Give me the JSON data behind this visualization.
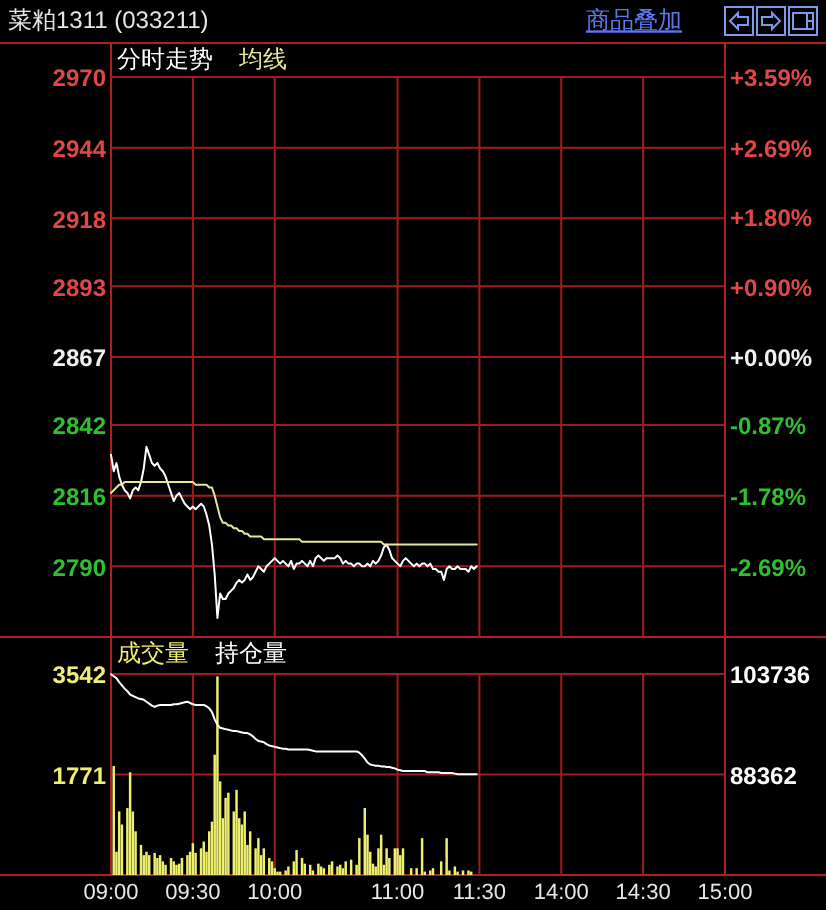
{
  "chart_data": [
    {
      "type": "line",
      "title": "菜粕1311 (033211)",
      "annotations": [
        "商品叠加"
      ],
      "categories": [
        null,
        null,
        null,
        null,
        null,
        null,
        null,
        null,
        null,
        null,
        null,
        null,
        null,
        null,
        null,
        null,
        null,
        null,
        null,
        null,
        null,
        null,
        null,
        null,
        null,
        null,
        null,
        null,
        null,
        null,
        null,
        null,
        null,
        null,
        null,
        null,
        null,
        null,
        null,
        null,
        null,
        null,
        null,
        null,
        null,
        null,
        null,
        null,
        null,
        null,
        null,
        null,
        null,
        null,
        null,
        null,
        null,
        null,
        null,
        null,
        null,
        null,
        null,
        null,
        null,
        null,
        null,
        null,
        null,
        null,
        null,
        null,
        null,
        null,
        null,
        null,
        null,
        null,
        null,
        null,
        null,
        null,
        null,
        null,
        null,
        null,
        null,
        null,
        null,
        null,
        null,
        null,
        null,
        null,
        null,
        null,
        null,
        null,
        null,
        null,
        null,
        null,
        null,
        null,
        null,
        null,
        null,
        null,
        null,
        null,
        null,
        null,
        null,
        null,
        null,
        null,
        null,
        null,
        null,
        null,
        null,
        null,
        null,
        null,
        null,
        null,
        null,
        null,
        null,
        null,
        null,
        null,
        null,
        null,
        null,
        null,
        null,
        null,
        null,
        null,
        null,
        null,
        null,
        null,
        null,
        null,
        null,
        null,
        null,
        null,
        null,
        null,
        null,
        null,
        null,
        null,
        null,
        null,
        null,
        null,
        null,
        null,
        null,
        null,
        null,
        null,
        null,
        null,
        null,
        null,
        null,
        null,
        null,
        null,
        null,
        null,
        null,
        null,
        null,
        null,
        null,
        null,
        null,
        null,
        null,
        null,
        null,
        null,
        null,
        null,
        null,
        null,
        null,
        null,
        null,
        null,
        null,
        null,
        null,
        null,
        null,
        null,
        null,
        null,
        null,
        null,
        null,
        null,
        null,
        null,
        null,
        null,
        null,
        null,
        null,
        null,
        null,
        null,
        null,
        null,
        null,
        null,
        null,
        null,
        null,
        null
      ],
      "ylim": [
        2764,
        2970
      ],
      "yticks": [
        2970,
        2944,
        2918,
        2893,
        2867,
        2842,
        2816,
        2790
      ],
      "y2lim": [
        -3.59,
        3.59
      ],
      "y2ticks": [
        {
          "value": 3.59,
          "label": "+3.59%"
        },
        {
          "value": 2.69,
          "label": "+2.69%"
        },
        {
          "value": 1.8,
          "label": "+1.80%"
        },
        {
          "value": 0.9,
          "label": "+0.90%"
        },
        {
          "value": 0,
          "label": "+0.00%"
        },
        {
          "value": -0.87,
          "label": "-0.87%"
        },
        {
          "value": -1.78,
          "label": "-1.78%"
        },
        {
          "value": -2.69,
          "label": "-2.69%"
        }
      ],
      "grid": true,
      "legend": "top left",
      "tick_labels": "y",
      "series": [
        {
          "name": "分时走势",
          "color": "#ffffff",
          "values": [
            2831,
            2825,
            2828,
            2823,
            2820,
            2818,
            2817,
            2815,
            2818,
            2819,
            2818,
            2821,
            2826,
            2834,
            2831,
            2828,
            2827,
            2828,
            2826,
            2825,
            2823,
            2820,
            2817,
            2814,
            2816,
            2817,
            2815,
            2813,
            2812,
            2811,
            2812,
            2811,
            2812,
            2813,
            2812,
            2809,
            2805,
            2798,
            2787,
            2771,
            2780,
            2778,
            2778,
            2780,
            2781,
            2782,
            2784,
            2785,
            2784,
            2785,
            2787,
            2785,
            2786,
            2788,
            2790,
            2789,
            2788,
            2790,
            2791,
            2792,
            2793,
            2792,
            2791,
            2792,
            2791,
            2790,
            2792,
            2789,
            2791,
            2791,
            2792,
            2791,
            2790,
            2792,
            2790,
            2793,
            2794,
            2793,
            2792,
            2793,
            2793,
            2793,
            2793,
            2794,
            2793,
            2791,
            2792,
            2791,
            2791,
            2790,
            2791,
            2791,
            2790,
            2790,
            2791,
            2790,
            2792,
            2791,
            2792,
            2794,
            2797,
            2798,
            2796,
            2793,
            2792,
            2791,
            2790,
            2792,
            2793,
            2792,
            2791,
            2790,
            2791,
            2790,
            2791,
            2791,
            2790,
            2791,
            2789,
            2789,
            2788,
            2788,
            2785,
            2789,
            2790,
            2789,
            2789,
            2790,
            2789,
            2789,
            2789,
            2788,
            2790,
            2789,
            2790,
            null,
            null,
            null,
            null,
            null,
            null,
            null,
            null,
            null,
            null,
            null,
            null,
            null,
            null,
            null,
            null,
            null,
            null,
            null,
            null,
            null,
            null,
            null,
            null,
            null,
            null,
            null,
            null,
            null,
            null,
            null,
            null,
            null,
            null,
            null,
            null,
            null,
            null,
            null,
            null,
            null,
            null,
            null,
            null,
            null,
            null,
            null,
            null,
            null,
            null,
            null,
            null,
            null,
            null,
            null,
            null,
            null,
            null,
            null,
            null,
            null,
            null,
            null,
            null,
            null,
            null,
            null,
            null,
            null,
            null,
            null,
            null,
            null,
            null,
            null,
            null,
            null,
            null,
            null,
            null,
            null,
            null,
            null,
            null,
            null,
            null,
            null,
            null,
            null,
            null,
            null
          ]
        },
        {
          "name": "均线",
          "color": "#e8e89a",
          "values": [
            2817,
            2818,
            2819,
            2820,
            2820,
            2821,
            2821,
            2821,
            2821,
            2821,
            2821,
            2821,
            2821,
            2821,
            2821,
            2821,
            2821,
            2821,
            2821,
            2821,
            2821,
            2821,
            2821,
            2821,
            2821,
            2821,
            2821,
            2821,
            2821,
            2821,
            2821,
            2820,
            2820,
            2820,
            2820,
            2820,
            2819,
            2819,
            2816,
            2812,
            2808,
            2806,
            2806,
            2805,
            2805,
            2804,
            2804,
            2803,
            2803,
            2802,
            2802,
            2801,
            2801,
            2801,
            2801,
            2801,
            2800,
            2800,
            2800,
            2800,
            2800,
            2800,
            2800,
            2800,
            2800,
            2800,
            2800,
            2800,
            2800,
            2800,
            2799,
            2799,
            2799,
            2799,
            2799,
            2799,
            2799,
            2799,
            2799,
            2799,
            2799,
            2799,
            2799,
            2799,
            2799,
            2799,
            2799,
            2799,
            2799,
            2799,
            2799,
            2799,
            2799,
            2799,
            2799,
            2799,
            2799,
            2799,
            2799,
            2799,
            2798,
            2798,
            2798,
            2798,
            2798,
            2798,
            2798,
            2798,
            2798,
            2798,
            2798,
            2798,
            2798,
            2798,
            2798,
            2798,
            2798,
            2798,
            2798,
            2798,
            2798,
            2798,
            2798,
            2798,
            2798,
            2798,
            2798,
            2798,
            2798,
            2798,
            2798,
            2798,
            2798,
            2798,
            2798,
            null,
            null,
            null,
            null,
            null,
            null,
            null,
            null,
            null,
            null,
            null,
            null,
            null,
            null,
            null,
            null,
            null,
            null,
            null,
            null,
            null,
            null,
            null,
            null,
            null,
            null,
            null,
            null,
            null,
            null,
            null,
            null,
            null,
            null,
            null,
            null,
            null,
            null,
            null,
            null,
            null,
            null,
            null,
            null,
            null,
            null,
            null,
            null,
            null,
            null,
            null,
            null,
            null,
            null,
            null,
            null,
            null,
            null,
            null,
            null,
            null,
            null,
            null,
            null,
            null,
            null,
            null,
            null,
            null,
            null,
            null,
            null,
            null,
            null,
            null,
            null,
            null,
            null,
            null,
            null,
            null,
            null,
            null,
            null,
            null,
            null,
            null,
            null,
            null,
            null,
            null
          ]
        }
      ]
    },
    {
      "type": "bar",
      "categories": [
        "09:00",
        null,
        null,
        null,
        null,
        null,
        null,
        null,
        null,
        null,
        null,
        null,
        null,
        null,
        null,
        null,
        null,
        null,
        null,
        null,
        null,
        null,
        null,
        null,
        null,
        null,
        null,
        null,
        null,
        null,
        "09:30",
        null,
        null,
        null,
        null,
        null,
        null,
        null,
        null,
        null,
        null,
        null,
        null,
        null,
        null,
        null,
        null,
        null,
        null,
        null,
        null,
        null,
        null,
        null,
        null,
        null,
        null,
        null,
        null,
        null,
        "10:00",
        null,
        null,
        null,
        null,
        null,
        null,
        null,
        null,
        null,
        null,
        null,
        null,
        null,
        null,
        null,
        null,
        null,
        null,
        null,
        null,
        null,
        null,
        null,
        null,
        null,
        null,
        null,
        null,
        null,
        null,
        null,
        null,
        null,
        null,
        null,
        null,
        null,
        null,
        null,
        null,
        null,
        null,
        null,
        null,
        "11:00",
        null,
        null,
        null,
        null,
        null,
        null,
        null,
        null,
        null,
        null,
        null,
        null,
        null,
        null,
        null,
        null,
        null,
        null,
        null,
        null,
        null,
        null,
        null,
        null,
        null,
        null,
        null,
        null,
        null,
        "11:30",
        null,
        null,
        null,
        null,
        null,
        null,
        null,
        null,
        null,
        null,
        null,
        null,
        null,
        null,
        null,
        null,
        null,
        null,
        null,
        null,
        null,
        null,
        null,
        null,
        null,
        null,
        null,
        null,
        null,
        "14:00",
        null,
        null,
        null,
        null,
        null,
        null,
        null,
        null,
        null,
        null,
        null,
        null,
        null,
        null,
        null,
        null,
        null,
        null,
        null,
        null,
        null,
        null,
        null,
        null,
        null,
        null,
        null,
        null,
        null,
        "14:30",
        null,
        null,
        null,
        null,
        null,
        null,
        null,
        null,
        null,
        null,
        null,
        null,
        null,
        null,
        null,
        null,
        null,
        null,
        null,
        null,
        null,
        null,
        null,
        null,
        null,
        null,
        null,
        null,
        null,
        "15:00"
      ],
      "ylim": [
        0,
        3542
      ],
      "yticks": [
        1771,
        3542
      ],
      "y2lim": [
        72988,
        103736
      ],
      "y2ticks": [
        88362,
        103736
      ],
      "grid": true,
      "legend": "top left",
      "series": [
        {
          "name": "成交量",
          "color": "#f0f070",
          "values": [
            null,
            1920,
            410,
            1120,
            890,
            null,
            1180,
            1810,
            1120,
            770,
            null,
            530,
            350,
            410,
            350,
            null,
            390,
            300,
            350,
            240,
            180,
            null,
            300,
            240,
            180,
            200,
            300,
            null,
            350,
            410,
            560,
            390,
            null,
            470,
            590,
            410,
            770,
            940,
            2120,
            3500,
            1650,
            1000,
            1360,
            1450,
            null,
            1120,
            1500,
            1000,
            890,
            1120,
            530,
            770,
            null,
            470,
            650,
            350,
            470,
            null,
            300,
            240,
            120,
            60,
            60,
            null,
            80,
            150,
            null,
            240,
            440,
            null,
            300,
            200,
            null,
            180,
            80,
            null,
            200,
            150,
            120,
            null,
            180,
            240,
            null,
            150,
            180,
            120,
            240,
            null,
            270,
            null,
            180,
            650,
            null,
            1180,
            710,
            410,
            200,
            150,
            470,
            710,
            180,
            470,
            300,
            null,
            470,
            470,
            350,
            470,
            null,
            null,
            120,
            null,
            120,
            null,
            650,
            60,
            null,
            80,
            120,
            null,
            null,
            240,
            null,
            650,
            80,
            null,
            150,
            60,
            null,
            80,
            null,
            80,
            60,
            null,
            null,
            null,
            null,
            null,
            null,
            null,
            null,
            null,
            null,
            null,
            null,
            null,
            null,
            null,
            null,
            null,
            null,
            null,
            null,
            null,
            null,
            null,
            null,
            null,
            null,
            null,
            null,
            null,
            null,
            null,
            null,
            null,
            null,
            null,
            null,
            null,
            null,
            null,
            null,
            null,
            null,
            null,
            null,
            null,
            null,
            null,
            null,
            null,
            null,
            null,
            null,
            null,
            null,
            null,
            null,
            null,
            null,
            null,
            null,
            null,
            null,
            null,
            null,
            null,
            null,
            null,
            null,
            null,
            null,
            null,
            null,
            null,
            null,
            null,
            null,
            null,
            null,
            null,
            null,
            null,
            null,
            null,
            null,
            null,
            null,
            null,
            null,
            null,
            null,
            null,
            null,
            null
          ]
        },
        {
          "name": "持仓量",
          "type": "line",
          "axis": "y2",
          "color": "#ffffff",
          "values": [
            103700,
            103400,
            103100,
            102500,
            102000,
            101500,
            101100,
            100600,
            100400,
            100200,
            100000,
            99900,
            99800,
            99500,
            99200,
            98900,
            98700,
            98900,
            99000,
            99000,
            99000,
            99000,
            99000,
            99100,
            99100,
            99200,
            99300,
            99400,
            99500,
            99300,
            99100,
            99000,
            99000,
            99000,
            99000,
            98800,
            98500,
            97900,
            96800,
            96000,
            95500,
            95400,
            95300,
            95200,
            95100,
            95000,
            95000,
            94900,
            94800,
            94700,
            94700,
            94500,
            94200,
            93800,
            93500,
            93400,
            93300,
            93000,
            92800,
            92700,
            92600,
            92500,
            92400,
            92300,
            92300,
            92200,
            92200,
            92200,
            92200,
            92200,
            92200,
            92200,
            92200,
            92100,
            92000,
            91900,
            91900,
            91900,
            91900,
            91900,
            91900,
            91900,
            91900,
            91900,
            91900,
            91900,
            91900,
            91900,
            91900,
            91900,
            91900,
            91700,
            91300,
            90800,
            90200,
            89900,
            89800,
            89700,
            89700,
            89600,
            89600,
            89500,
            89500,
            89400,
            89300,
            89100,
            89000,
            88900,
            88900,
            88900,
            88900,
            88900,
            88900,
            88900,
            88900,
            88900,
            88700,
            88700,
            88700,
            88700,
            88700,
            88600,
            88600,
            88600,
            88600,
            88600,
            88500,
            88400,
            88400,
            88400,
            88400,
            88400,
            88400,
            88400,
            88400,
            null,
            null,
            null,
            null,
            null,
            null,
            null,
            null,
            null,
            null,
            null,
            null,
            null,
            null,
            null,
            null,
            null,
            null,
            null,
            null,
            null,
            null,
            null,
            null,
            null,
            null,
            null,
            null,
            null,
            null,
            null,
            null,
            null,
            null,
            null,
            null,
            null,
            null,
            null,
            null,
            null,
            null,
            null,
            null,
            null,
            null,
            null,
            null,
            null,
            null,
            null,
            null,
            null,
            null,
            null,
            null,
            null,
            null,
            null,
            null,
            null,
            null,
            null,
            null,
            null,
            null,
            null,
            null,
            null,
            null,
            null,
            null,
            null,
            null,
            null,
            null,
            null,
            null,
            null,
            null,
            null,
            null,
            null,
            null,
            null,
            null,
            null,
            null,
            null,
            null,
            null
          ]
        }
      ]
    }
  ]
}
